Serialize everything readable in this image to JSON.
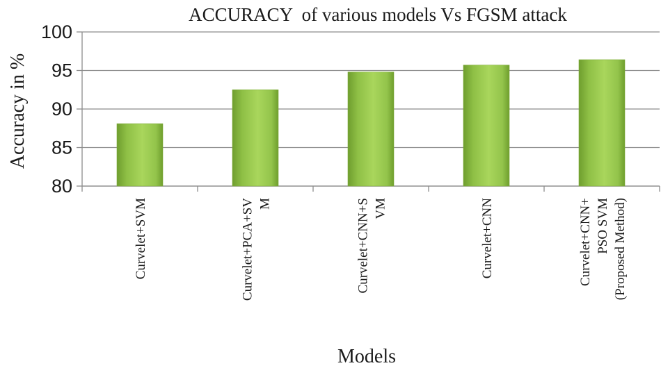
{
  "chart_data": {
    "type": "bar",
    "title": "ACCURACY  of various models Vs FGSM attack",
    "xlabel": "Models",
    "ylabel": "Accuracy in %",
    "ylim": [
      80,
      100
    ],
    "yticks": [
      80,
      85,
      90,
      95,
      100
    ],
    "grid": true,
    "legend": "none",
    "categories": [
      [
        "Curvelet+SVM"
      ],
      [
        "Curvelet+PCA+SV",
        "M"
      ],
      [
        "Curvelet+CNN+S",
        "VM"
      ],
      [
        "Curvelet+CNN"
      ],
      [
        "Curvelet+CNN+",
        "PSO SVM",
        "(Proposed Method)"
      ]
    ],
    "values": [
      88.1,
      92.5,
      94.8,
      95.7,
      96.4
    ],
    "colors": {
      "bar_dark": "#6f9e2e",
      "bar_light": "#a9d65c",
      "grid": "#8c8c8c"
    }
  }
}
